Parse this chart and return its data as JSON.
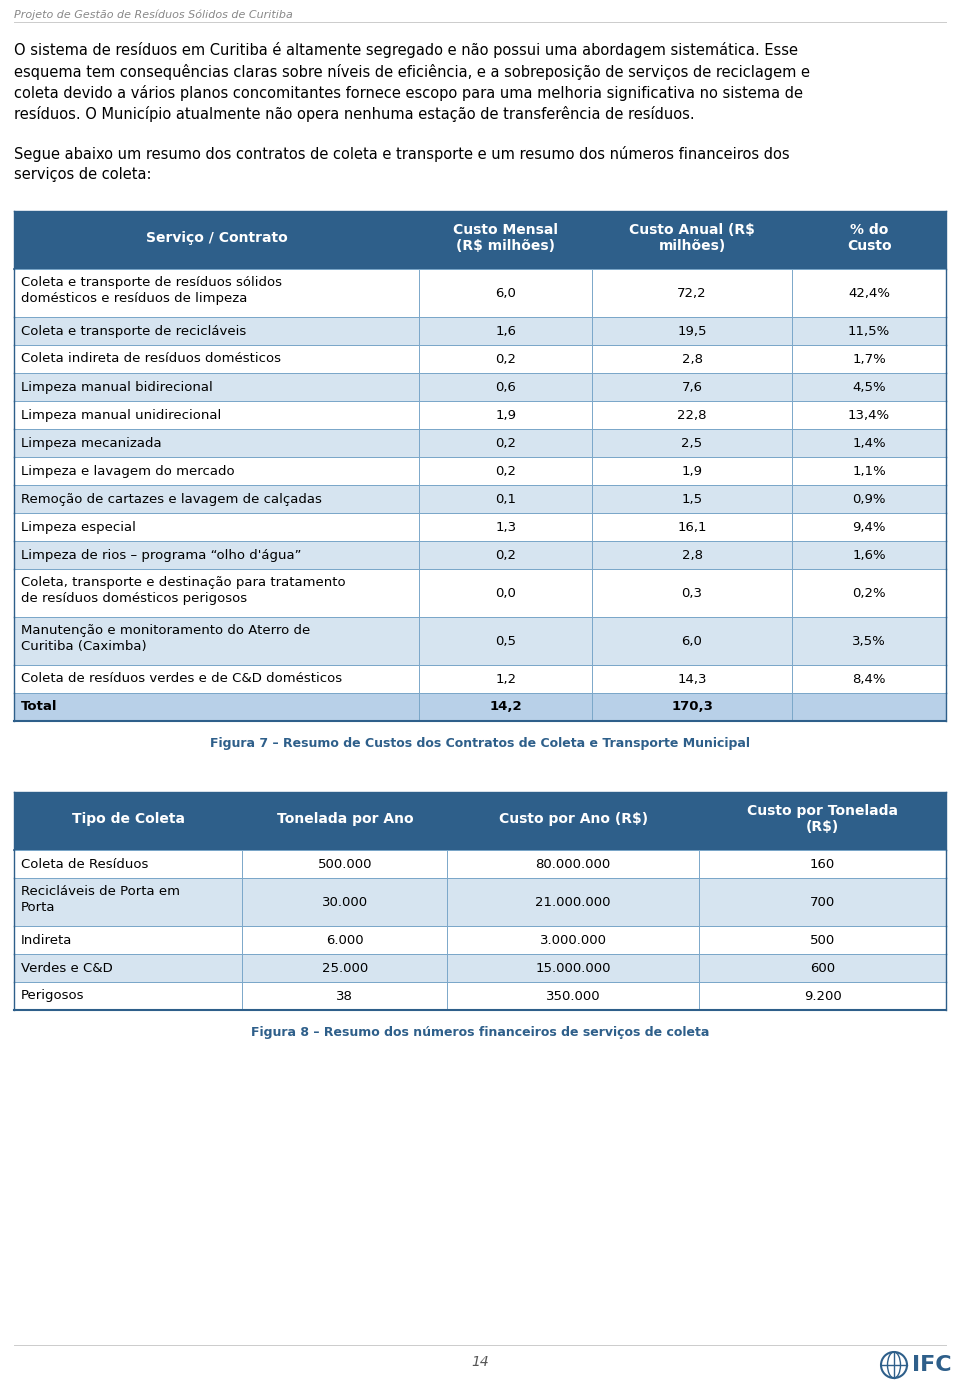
{
  "page_title": "Projeto de Gestão de Resíduos Sólidos de Curitiba",
  "body_text_1_lines": [
    "O sistema de resíduos em Curitiba é altamente segregado e não possui uma abordagem sistemática. Esse",
    "esquema tem consequências claras sobre níveis de eficiência, e a sobreposição de serviços de reciclagem e",
    "coleta devido a vários planos concomitantes fornece escopo para uma melhoria significativa no sistema de",
    "resíduos. O Município atualmente não opera nenhuma estação de transferência de resíduos."
  ],
  "body_text_2_lines": [
    "Segue abaixo um resumo dos contratos de coleta e transporte e um resumo dos números financeiros dos",
    "serviços de coleta:"
  ],
  "table1_header": [
    "Serviço / Contrato",
    "Custo Mensal\n(R$ milhões)",
    "Custo Anual (R$\nmilhões)",
    "% do\nCusto"
  ],
  "table1_rows": [
    [
      "Coleta e transporte de resíduos sólidos\ndomésticos e resíduos de limpeza",
      "6,0",
      "72,2",
      "42,4%"
    ],
    [
      "Coleta e transporte de recicláveis",
      "1,6",
      "19,5",
      "11,5%"
    ],
    [
      "Coleta indireta de resíduos domésticos",
      "0,2",
      "2,8",
      "1,7%"
    ],
    [
      "Limpeza manual bidirecional",
      "0,6",
      "7,6",
      "4,5%"
    ],
    [
      "Limpeza manual unidirecional",
      "1,9",
      "22,8",
      "13,4%"
    ],
    [
      "Limpeza mecanizada",
      "0,2",
      "2,5",
      "1,4%"
    ],
    [
      "Limpeza e lavagem do mercado",
      "0,2",
      "1,9",
      "1,1%"
    ],
    [
      "Remoção de cartazes e lavagem de calçadas",
      "0,1",
      "1,5",
      "0,9%"
    ],
    [
      "Limpeza especial",
      "1,3",
      "16,1",
      "9,4%"
    ],
    [
      "Limpeza de rios – programa “olho d'água”",
      "0,2",
      "2,8",
      "1,6%"
    ],
    [
      "Coleta, transporte e destinação para tratamento\nde resíduos domésticos perigosos",
      "0,0",
      "0,3",
      "0,2%"
    ],
    [
      "Manutenção e monitoramento do Aterro de\nCuritiba (Caximba)",
      "0,5",
      "6,0",
      "3,5%"
    ],
    [
      "Coleta de resíduos verdes e de C&D domésticos",
      "1,2",
      "14,3",
      "8,4%"
    ],
    [
      "Total",
      "14,2",
      "170,3",
      ""
    ]
  ],
  "table1_caption": "Figura 7 – Resumo de Custos dos Contratos de Coleta e Transporte Municipal",
  "table2_header": [
    "Tipo de Coleta",
    "Tonelada por Ano",
    "Custo por Ano (R$)",
    "Custo por Tonelada\n(R$)"
  ],
  "table2_rows": [
    [
      "Coleta de Resíduos",
      "500.000",
      "80.000.000",
      "160"
    ],
    [
      "Recicláveis de Porta em\nPorta",
      "30.000",
      "21.000.000",
      "700"
    ],
    [
      "Indireta",
      "6.000",
      "3.000.000",
      "500"
    ],
    [
      "Verdes e C&D",
      "25.000",
      "15.000.000",
      "600"
    ],
    [
      "Perigosos",
      "38",
      "350.000",
      "9.200"
    ]
  ],
  "table2_caption": "Figura 8 – Resumo dos números financeiros de serviços de coleta",
  "header_bg": "#2E5F8A",
  "header_text": "#FFFFFF",
  "row_bg_white": "#FFFFFF",
  "row_bg_blue": "#D6E4F0",
  "total_bg": "#B8D0E8",
  "row_border": "#7BA7C9",
  "caption_color": "#2E5F8A",
  "page_num": "14",
  "page_bg": "#FFFFFF",
  "border_color": "#2E5F8A",
  "title_color": "#888888",
  "body_color": "#000000",
  "line_color": "#CCCCCC"
}
